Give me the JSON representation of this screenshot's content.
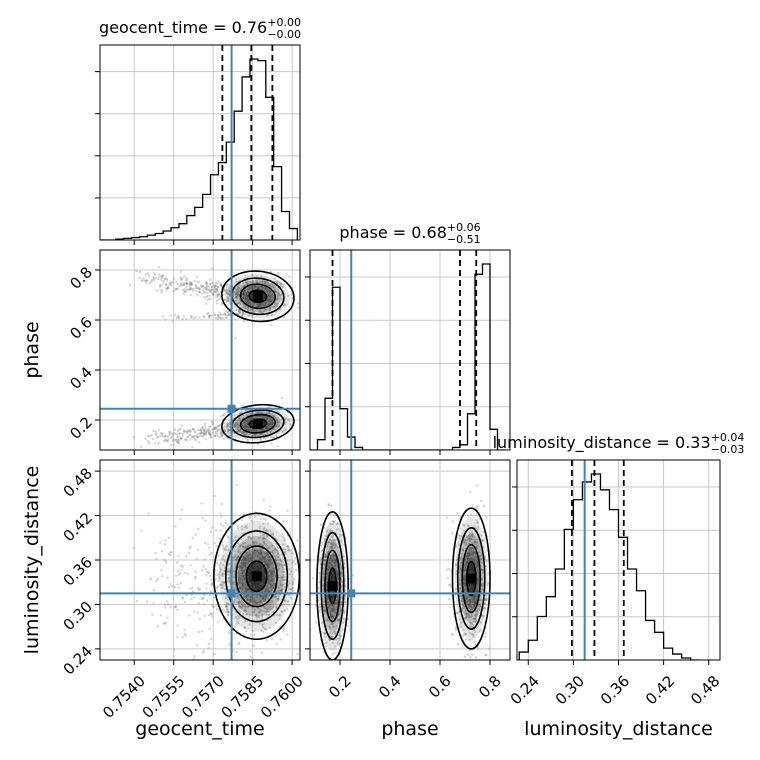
{
  "chart_data": {
    "type": "corner",
    "grid": true,
    "colors": {
      "truth": "#4682b4",
      "hist": "#000000",
      "quantile": "#000000",
      "scatter": "#888888"
    },
    "parameters": [
      {
        "name": "geocent_time",
        "axis_label": "geocent_time",
        "title_main": "geocent_time = 0.76",
        "title_plus": "+0.00",
        "title_minus": "−0.00",
        "range": [
          0.7527,
          0.7603
        ],
        "ticks": [
          0.754,
          0.7555,
          0.757,
          0.7585,
          0.76
        ],
        "tick_labels": [
          "0.7540",
          "0.7555",
          "0.7570",
          "0.7585",
          "0.7600"
        ],
        "truth": 0.7577,
        "quantiles": [
          0.75735,
          0.75845,
          0.75925
        ],
        "hist": {
          "edges": [
            0.7527,
            0.753,
            0.7533,
            0.7536,
            0.7539,
            0.7542,
            0.7545,
            0.7548,
            0.7551,
            0.7554,
            0.7557,
            0.756,
            0.7563,
            0.7566,
            0.7569,
            0.7572,
            0.7575,
            0.7578,
            0.7581,
            0.7584,
            0.7587,
            0.759,
            0.7593,
            0.7596,
            0.7599,
            0.7602
          ],
          "counts": [
            0,
            0,
            1,
            2,
            3,
            4,
            6,
            8,
            11,
            15,
            20,
            30,
            40,
            56,
            80,
            95,
            120,
            158,
            200,
            222,
            220,
            175,
            90,
            35,
            14
          ]
        }
      },
      {
        "name": "phase",
        "axis_label": "phase",
        "title_main": "phase = 0.68",
        "title_plus": "+0.06",
        "title_minus": "−0.51",
        "range": [
          0.08,
          0.88
        ],
        "ticks": [
          0.2,
          0.4,
          0.6,
          0.8
        ],
        "tick_labels": [
          "0.2",
          "0.4",
          "0.6",
          "0.8"
        ],
        "truth": 0.245,
        "quantiles": [
          0.17,
          0.68,
          0.745
        ],
        "hist": {
          "edges": [
            0.08,
            0.11,
            0.14,
            0.17,
            0.2,
            0.23,
            0.26,
            0.29,
            0.32,
            0.35,
            0.38,
            0.41,
            0.44,
            0.47,
            0.5,
            0.53,
            0.56,
            0.59,
            0.62,
            0.65,
            0.68,
            0.71,
            0.74,
            0.77,
            0.8,
            0.83,
            0.86
          ],
          "counts": [
            0,
            4,
            20,
            63,
            16,
            5,
            1,
            0,
            0,
            0,
            0,
            0,
            0,
            0,
            0,
            0,
            0,
            0,
            0,
            1,
            2,
            14,
            68,
            72,
            8,
            0
          ]
        }
      },
      {
        "name": "luminosity_distance",
        "axis_label": "luminosity_distance",
        "title_main": "luminosity_distance = 0.33",
        "title_plus": "+0.04",
        "title_minus": "−0.03",
        "range": [
          0.225,
          0.495
        ],
        "ticks": [
          0.24,
          0.3,
          0.36,
          0.42,
          0.48
        ],
        "tick_labels": [
          "0.24",
          "0.30",
          "0.36",
          "0.42",
          "0.48"
        ],
        "truth": 0.315,
        "quantiles": [
          0.298,
          0.328,
          0.367
        ],
        "hist": {
          "edges": [
            0.228,
            0.24,
            0.252,
            0.264,
            0.276,
            0.288,
            0.3,
            0.312,
            0.324,
            0.336,
            0.348,
            0.36,
            0.372,
            0.384,
            0.396,
            0.408,
            0.42,
            0.432,
            0.444,
            0.456,
            0.468
          ],
          "counts": [
            4,
            10,
            22,
            32,
            46,
            66,
            81,
            90,
            94,
            86,
            76,
            62,
            46,
            35,
            20,
            14,
            6,
            3,
            1,
            0
          ]
        }
      }
    ]
  }
}
